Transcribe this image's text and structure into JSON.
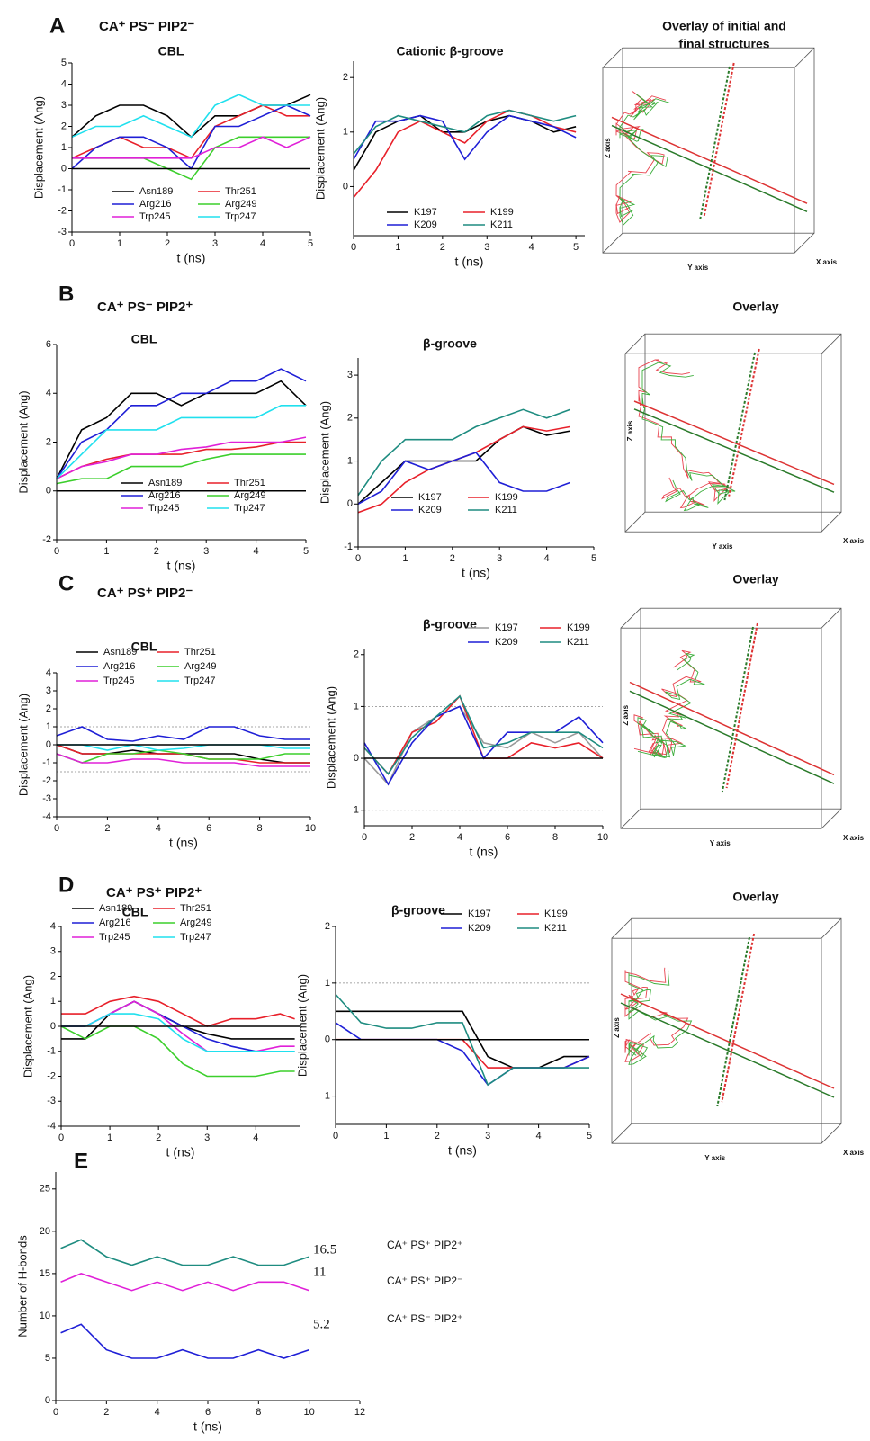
{
  "panels": [
    {
      "label": "A",
      "condition": "CA⁺ PS⁻ PIP2⁻",
      "overlay": {
        "title": [
          "Overlay of initial and",
          "final structures"
        ],
        "axes": [
          "Z axis",
          "Y axis",
          "X axis"
        ]
      }
    },
    {
      "label": "B",
      "condition": "CA⁺ PS⁻ PIP2⁺",
      "overlay": {
        "title": [
          "Overlay"
        ],
        "axes": [
          "Z axis",
          "Y axis",
          "X axis"
        ]
      }
    },
    {
      "label": "C",
      "condition": "CA⁺ PS⁺ PIP2⁻",
      "overlay": {
        "title": [
          "Overlay"
        ],
        "axes": [
          "Z axis",
          "Y axis",
          "X axis"
        ]
      }
    },
    {
      "label": "D",
      "condition": "CA⁺ PS⁺ PIP2⁺",
      "overlay": {
        "title": [
          "Overlay"
        ],
        "axes": [
          "Z axis",
          "Y axis",
          "X axis"
        ]
      }
    },
    {
      "label": "E"
    }
  ],
  "chart_data": [
    {
      "type": "line",
      "title": "CBL",
      "xlabel": "t (ns)",
      "ylabel": "Displacement (Ang)",
      "zero_line": true,
      "x": [
        0,
        0.5,
        1,
        1.5,
        2,
        2.5,
        3,
        3.5,
        4,
        4.5,
        5
      ],
      "xlim": [
        0,
        5
      ],
      "xticks": [
        0,
        1,
        2,
        3,
        4,
        5
      ],
      "ylim": [
        -3,
        5
      ],
      "yticks": [
        -3,
        -2,
        -1,
        0,
        1,
        2,
        3,
        4,
        5
      ],
      "series": [
        {
          "name": "Asn189",
          "color": "#000000",
          "values": [
            1.5,
            2.5,
            3,
            3,
            2.5,
            1.5,
            2.5,
            2.5,
            3,
            3,
            3.5
          ]
        },
        {
          "name": "Thr251",
          "color": "#e8202a",
          "values": [
            0.5,
            1,
            1.5,
            1,
            1,
            0.5,
            2,
            2.5,
            3,
            2.5,
            2.5
          ]
        },
        {
          "name": "Arg216",
          "color": "#1f1fd6",
          "values": [
            0,
            1,
            1.5,
            1.5,
            1,
            0,
            2,
            2,
            2.5,
            3,
            2.5
          ]
        },
        {
          "name": "Arg249",
          "color": "#3ccf2c",
          "values": [
            0.5,
            0.5,
            0.5,
            0.5,
            0,
            -0.5,
            1,
            1.5,
            1.5,
            1.5,
            1.5
          ]
        },
        {
          "name": "Trp245",
          "color": "#e020d8",
          "values": [
            0.5,
            0.5,
            0.5,
            0.5,
            0.5,
            0.5,
            1,
            1,
            1.5,
            1,
            1.5
          ]
        },
        {
          "name": "Trp247",
          "color": "#20e0ee",
          "values": [
            1.5,
            2,
            2,
            2.5,
            2,
            1.5,
            3,
            3.5,
            3,
            3,
            3
          ]
        }
      ]
    },
    {
      "type": "line",
      "title": "Cationic β-groove",
      "xlabel": "t (ns)",
      "ylabel": "Displacement (Ang)",
      "x": [
        0,
        0.5,
        1,
        1.5,
        2,
        2.5,
        3,
        3.5,
        4,
        4.5,
        5
      ],
      "xlim": [
        0,
        5.2
      ],
      "xticks": [
        0,
        1,
        2,
        3,
        4,
        5
      ],
      "ylim": [
        -0.9,
        2.3
      ],
      "yticks": [
        0,
        1,
        2
      ],
      "series": [
        {
          "name": "K197",
          "color": "#000000",
          "values": [
            0.3,
            1,
            1.2,
            1.3,
            1,
            1,
            1.2,
            1.3,
            1.2,
            1,
            1.1
          ]
        },
        {
          "name": "K199",
          "color": "#e8202a",
          "values": [
            -0.2,
            0.3,
            1,
            1.2,
            1,
            0.8,
            1.2,
            1.4,
            1.3,
            1.1,
            1
          ]
        },
        {
          "name": "K209",
          "color": "#1f1fd6",
          "values": [
            0.5,
            1.2,
            1.2,
            1.3,
            1.2,
            0.5,
            1,
            1.3,
            1.2,
            1.1,
            0.9
          ]
        },
        {
          "name": "K211",
          "color": "#1e8c80",
          "values": [
            0.6,
            1.1,
            1.3,
            1.2,
            1.1,
            1,
            1.3,
            1.4,
            1.3,
            1.2,
            1.3
          ]
        }
      ]
    },
    {
      "type": "line",
      "title": "CBL",
      "xlabel": "t (ns)",
      "ylabel": "Displacement (Ang)",
      "zero_line": true,
      "x": [
        0,
        0.5,
        1,
        1.5,
        2,
        2.5,
        3,
        3.5,
        4,
        4.5,
        5
      ],
      "xlim": [
        0,
        5
      ],
      "xticks": [
        0,
        1,
        2,
        3,
        4,
        5
      ],
      "ylim": [
        -2,
        6
      ],
      "yticks": [
        -2,
        0,
        2,
        4,
        6
      ],
      "series": [
        {
          "name": "Asn189",
          "color": "#000000",
          "values": [
            0.5,
            2.5,
            3,
            4,
            4,
            3.5,
            4,
            4,
            4,
            4.5,
            3.5
          ]
        },
        {
          "name": "Thr251",
          "color": "#e8202a",
          "values": [
            0.5,
            1,
            1.3,
            1.5,
            1.5,
            1.5,
            1.7,
            1.7,
            1.8,
            2,
            2
          ]
        },
        {
          "name": "Arg216",
          "color": "#1f1fd6",
          "values": [
            0.5,
            2,
            2.5,
            3.5,
            3.5,
            4,
            4,
            4.5,
            4.5,
            5,
            4.5
          ]
        },
        {
          "name": "Arg249",
          "color": "#3ccf2c",
          "values": [
            0.3,
            0.5,
            0.5,
            1,
            1,
            1,
            1.3,
            1.5,
            1.5,
            1.5,
            1.5
          ]
        },
        {
          "name": "Trp245",
          "color": "#e020d8",
          "values": [
            0.5,
            1,
            1.2,
            1.5,
            1.5,
            1.7,
            1.8,
            2,
            2,
            2,
            2.2
          ]
        },
        {
          "name": "Trp247",
          "color": "#20e0ee",
          "values": [
            0.5,
            1.5,
            2.5,
            2.5,
            2.5,
            3,
            3,
            3,
            3,
            3.5,
            3.5
          ]
        }
      ]
    },
    {
      "type": "line",
      "title": "β-groove",
      "xlabel": "t (ns)",
      "ylabel": "Displacement (Ang)",
      "x": [
        0,
        0.5,
        1,
        1.5,
        2,
        2.5,
        3,
        3.5,
        4,
        4.5
      ],
      "xlim": [
        0,
        5
      ],
      "xticks": [
        0,
        1,
        2,
        3,
        4,
        5
      ],
      "ylim": [
        -1,
        3.4
      ],
      "yticks": [
        -1,
        0,
        1,
        2,
        3
      ],
      "series": [
        {
          "name": "K197",
          "color": "#000000",
          "values": [
            0,
            0.5,
            1,
            1,
            1,
            1,
            1.5,
            1.8,
            1.6,
            1.7
          ]
        },
        {
          "name": "K199",
          "color": "#e8202a",
          "values": [
            -0.2,
            0,
            0.5,
            0.8,
            1,
            1.2,
            1.5,
            1.8,
            1.7,
            1.8
          ]
        },
        {
          "name": "K209",
          "color": "#1f1fd6",
          "values": [
            0,
            0.3,
            1,
            0.8,
            1,
            1.2,
            0.5,
            0.3,
            0.3,
            0.5
          ]
        },
        {
          "name": "K211",
          "color": "#1e8c80",
          "values": [
            0.2,
            1,
            1.5,
            1.5,
            1.5,
            1.8,
            2,
            2.2,
            2,
            2.2
          ]
        }
      ]
    },
    {
      "type": "line",
      "title": "CBL",
      "xlabel": "t (ns)",
      "ylabel": "Displacement (Ang)",
      "zero_line": true,
      "ref_lines": [
        1,
        -1.5
      ],
      "x": [
        0,
        1,
        2,
        3,
        4,
        5,
        6,
        7,
        8,
        9,
        10
      ],
      "xlim": [
        0,
        10
      ],
      "xticks": [
        0,
        2,
        4,
        6,
        8,
        10
      ],
      "ylim": [
        -4,
        4
      ],
      "yticks": [
        -4,
        -3,
        -2,
        -1,
        0,
        1,
        2,
        3,
        4
      ],
      "series": [
        {
          "name": "Asn189",
          "color": "#000000",
          "values": [
            0,
            -0.5,
            -0.5,
            -0.3,
            -0.5,
            -0.5,
            -0.5,
            -0.5,
            -0.8,
            -1,
            -1
          ]
        },
        {
          "name": "Thr251",
          "color": "#e8202a",
          "values": [
            0,
            -0.5,
            -0.5,
            -0.5,
            -0.5,
            -0.5,
            -0.8,
            -0.8,
            -1,
            -1,
            -1
          ]
        },
        {
          "name": "Arg216",
          "color": "#1f1fd6",
          "values": [
            0.5,
            1,
            0.3,
            0.2,
            0.5,
            0.3,
            1,
            1,
            0.5,
            0.3,
            0.3
          ]
        },
        {
          "name": "Arg249",
          "color": "#3ccf2c",
          "values": [
            -0.5,
            -1,
            -0.5,
            -0.5,
            -0.3,
            -0.5,
            -0.8,
            -0.8,
            -0.8,
            -0.5,
            -0.5
          ]
        },
        {
          "name": "Trp245",
          "color": "#e020d8",
          "values": [
            -0.5,
            -1,
            -1,
            -0.8,
            -0.8,
            -1,
            -1,
            -1,
            -1.2,
            -1.2,
            -1.2
          ]
        },
        {
          "name": "Trp247",
          "color": "#20e0ee",
          "values": [
            0,
            0,
            -0.3,
            0,
            -0.3,
            -0.2,
            0,
            0,
            0,
            -0.2,
            -0.2
          ]
        }
      ]
    },
    {
      "type": "line",
      "title": "β-groove",
      "xlabel": "t (ns)",
      "ylabel": "Displacement (Ang)",
      "zero_line": true,
      "ref_lines": [
        1,
        -1
      ],
      "x": [
        0,
        1,
        2,
        3,
        4,
        5,
        6,
        7,
        8,
        9,
        10
      ],
      "xlim": [
        0,
        10
      ],
      "xticks": [
        0,
        2,
        4,
        6,
        8,
        10
      ],
      "ylim": [
        -1.3,
        2.1
      ],
      "yticks": [
        -1,
        0,
        1,
        2
      ],
      "series": [
        {
          "name": "K197",
          "color": "#9a9a9a",
          "values": [
            0,
            -0.5,
            0.5,
            0.8,
            1,
            0.3,
            0.2,
            0.5,
            0.3,
            0.5,
            0
          ]
        },
        {
          "name": "K199",
          "color": "#e8202a",
          "values": [
            0.2,
            -0.3,
            0.5,
            0.7,
            1.2,
            0,
            0,
            0.3,
            0.2,
            0.3,
            0
          ]
        },
        {
          "name": "K209",
          "color": "#1f1fd6",
          "values": [
            0.3,
            -0.5,
            0.3,
            0.8,
            1,
            0,
            0.5,
            0.5,
            0.5,
            0.8,
            0.3
          ]
        },
        {
          "name": "K211",
          "color": "#1e8c80",
          "values": [
            0.2,
            -0.3,
            0.4,
            0.8,
            1.2,
            0.2,
            0.3,
            0.5,
            0.5,
            0.5,
            0.2
          ]
        }
      ]
    },
    {
      "type": "line",
      "title": "CBL",
      "xlabel": "t (ns)",
      "ylabel": "Displacement (Ang)",
      "zero_line": true,
      "x": [
        0,
        0.5,
        1,
        1.5,
        2,
        2.5,
        3,
        3.5,
        4,
        4.5,
        4.8
      ],
      "xlim": [
        0,
        4.9
      ],
      "xticks": [
        0,
        1,
        2,
        3,
        4
      ],
      "ylim": [
        -4,
        4
      ],
      "yticks": [
        -4,
        -3,
        -2,
        -1,
        0,
        1,
        2,
        3,
        4
      ],
      "series": [
        {
          "name": "Asn189",
          "color": "#000000",
          "values": [
            -0.5,
            -0.5,
            0.5,
            1,
            0.5,
            0,
            -0.3,
            -0.5,
            -0.5,
            -0.5,
            -0.5
          ]
        },
        {
          "name": "Thr251",
          "color": "#e8202a",
          "values": [
            0.5,
            0.5,
            1,
            1.2,
            1,
            0.5,
            0,
            0.3,
            0.3,
            0.5,
            0.3
          ]
        },
        {
          "name": "Arg216",
          "color": "#1f1fd6",
          "values": [
            0,
            0,
            0.5,
            1,
            0.5,
            0,
            -0.5,
            -0.8,
            -1,
            -1,
            -1
          ]
        },
        {
          "name": "Arg249",
          "color": "#3ccf2c",
          "values": [
            0,
            -0.5,
            0,
            0,
            -0.5,
            -1.5,
            -2,
            -2,
            -2,
            -1.8,
            -1.8
          ]
        },
        {
          "name": "Trp245",
          "color": "#e020d8",
          "values": [
            0,
            0,
            0.5,
            1,
            0.5,
            -0.3,
            -1,
            -1,
            -1,
            -0.8,
            -0.8
          ]
        },
        {
          "name": "Trp247",
          "color": "#20e0ee",
          "values": [
            0,
            0,
            0.5,
            0.5,
            0.3,
            -0.5,
            -1,
            -1,
            -1,
            -1,
            -1
          ]
        }
      ]
    },
    {
      "type": "line",
      "title": "β-groove",
      "xlabel": "t (ns)",
      "ylabel": "Displacement (Ang)",
      "zero_line": true,
      "ref_lines": [
        1,
        -1
      ],
      "x": [
        0,
        0.5,
        1,
        1.5,
        2,
        2.5,
        3,
        3.5,
        4,
        4.5,
        5
      ],
      "xlim": [
        0,
        5
      ],
      "xticks": [
        0,
        1,
        2,
        3,
        4,
        5
      ],
      "ylim": [
        -1.5,
        2
      ],
      "yticks": [
        -1,
        0,
        1,
        2
      ],
      "series": [
        {
          "name": "K197",
          "color": "#000000",
          "values": [
            0.5,
            0.5,
            0.5,
            0.5,
            0.5,
            0.5,
            -0.3,
            -0.5,
            -0.5,
            -0.3,
            -0.3
          ]
        },
        {
          "name": "K199",
          "color": "#e8202a",
          "values": [
            0,
            0,
            0,
            0,
            0,
            0,
            -0.5,
            -0.5,
            -0.5,
            -0.5,
            -0.3
          ]
        },
        {
          "name": "K209",
          "color": "#1f1fd6",
          "values": [
            0.3,
            0,
            0,
            0,
            0,
            -0.2,
            -0.8,
            -0.5,
            -0.5,
            -0.5,
            -0.3
          ]
        },
        {
          "name": "K211",
          "color": "#1e8c80",
          "values": [
            0.8,
            0.3,
            0.2,
            0.2,
            0.3,
            0.3,
            -0.8,
            -0.5,
            -0.5,
            -0.5,
            -0.5
          ]
        }
      ]
    },
    {
      "type": "line",
      "xlabel": "t (ns)",
      "ylabel": "Number of H-bonds",
      "x": [
        0.2,
        1,
        2,
        3,
        4,
        5,
        6,
        7,
        8,
        9,
        10
      ],
      "xlim": [
        0,
        12
      ],
      "xticks": [
        0,
        2,
        4,
        6,
        8,
        10,
        12
      ],
      "ylim": [
        0,
        27
      ],
      "yticks": [
        0,
        5,
        10,
        15,
        20,
        25
      ],
      "series": [
        {
          "name": "CA⁺ PS⁺ PIP2⁺",
          "color": "#1e8c80",
          "annotation": 16.5,
          "values": [
            18,
            19,
            17,
            16,
            17,
            16,
            16,
            17,
            16,
            16,
            17
          ]
        },
        {
          "name": "CA⁺ PS⁺ PIP2⁻",
          "color": "#e020d8",
          "annotation": 11,
          "values": [
            14,
            15,
            14,
            13,
            14,
            13,
            14,
            13,
            14,
            14,
            13
          ]
        },
        {
          "name": "CA⁺ PS⁻ PIP2⁺",
          "color": "#1f1fd6",
          "annotation": 5.2,
          "values": [
            8,
            9,
            6,
            5,
            5,
            6,
            5,
            5,
            6,
            5,
            6
          ]
        }
      ]
    }
  ]
}
